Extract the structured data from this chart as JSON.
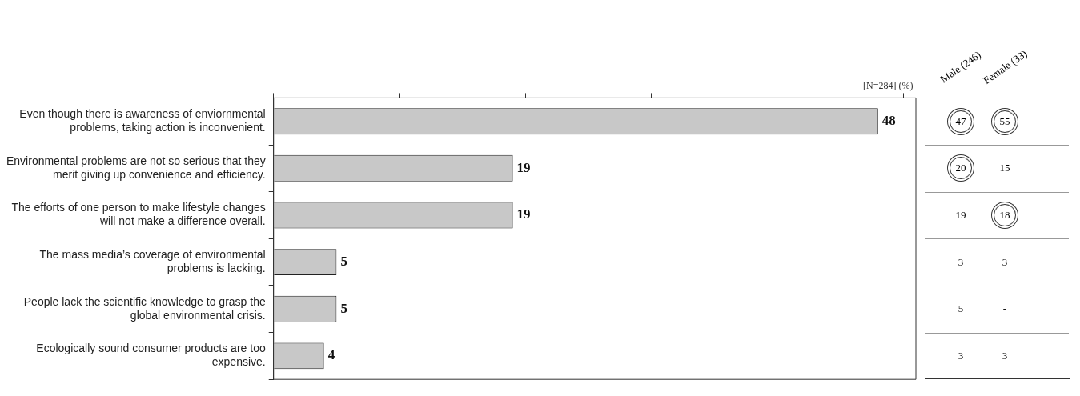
{
  "chart_data": [
    {
      "type": "bar",
      "orientation": "horizontal",
      "categories": [
        "Even though there is awareness of enviornmental problems, taking action is inconvenient.",
        "Environmental problems are not so serious that they merit giving up convenience and efficiency.",
        "The efforts of one person to make lifestyle changes will not make a difference overall.",
        "The mass media’s coverage of environmental problems is lacking.",
        "People lack the scientific knowledge to grasp the global environmental crisis.",
        "Ecologically sound consumer products are too expensive."
      ],
      "values": [
        48,
        19,
        19,
        5,
        5,
        4
      ],
      "color": "#c8c8c8",
      "xlim": [
        0,
        51
      ],
      "xticks": [
        {
          "value": 0,
          "label": null
        },
        {
          "value": 10,
          "label": null
        },
        {
          "value": 20,
          "label": null
        },
        {
          "value": 30,
          "label": null
        },
        {
          "value": 40,
          "label": null
        },
        {
          "value": 50,
          "label": null
        }
      ],
      "grid": false,
      "legend": false,
      "data_labels": true,
      "annotations": [
        "[N=284] (%)"
      ]
    },
    {
      "type": "heatmap",
      "tick_labels": "x",
      "categories": [
        "Male (246)",
        "Female (33)"
      ],
      "y_categories": [
        null,
        null,
        null,
        null,
        null,
        null
      ],
      "cells": [
        [
          47,
          55
        ],
        [
          20,
          15
        ],
        [
          19,
          18
        ],
        [
          3,
          3
        ],
        [
          5,
          null
        ],
        [
          3,
          3
        ]
      ],
      "cell_labels": [
        [
          "47",
          "55"
        ],
        [
          "20",
          "15"
        ],
        [
          "19",
          "18"
        ],
        [
          "3",
          "3"
        ],
        [
          "5",
          "-"
        ],
        [
          "3",
          "3"
        ]
      ]
    }
  ]
}
